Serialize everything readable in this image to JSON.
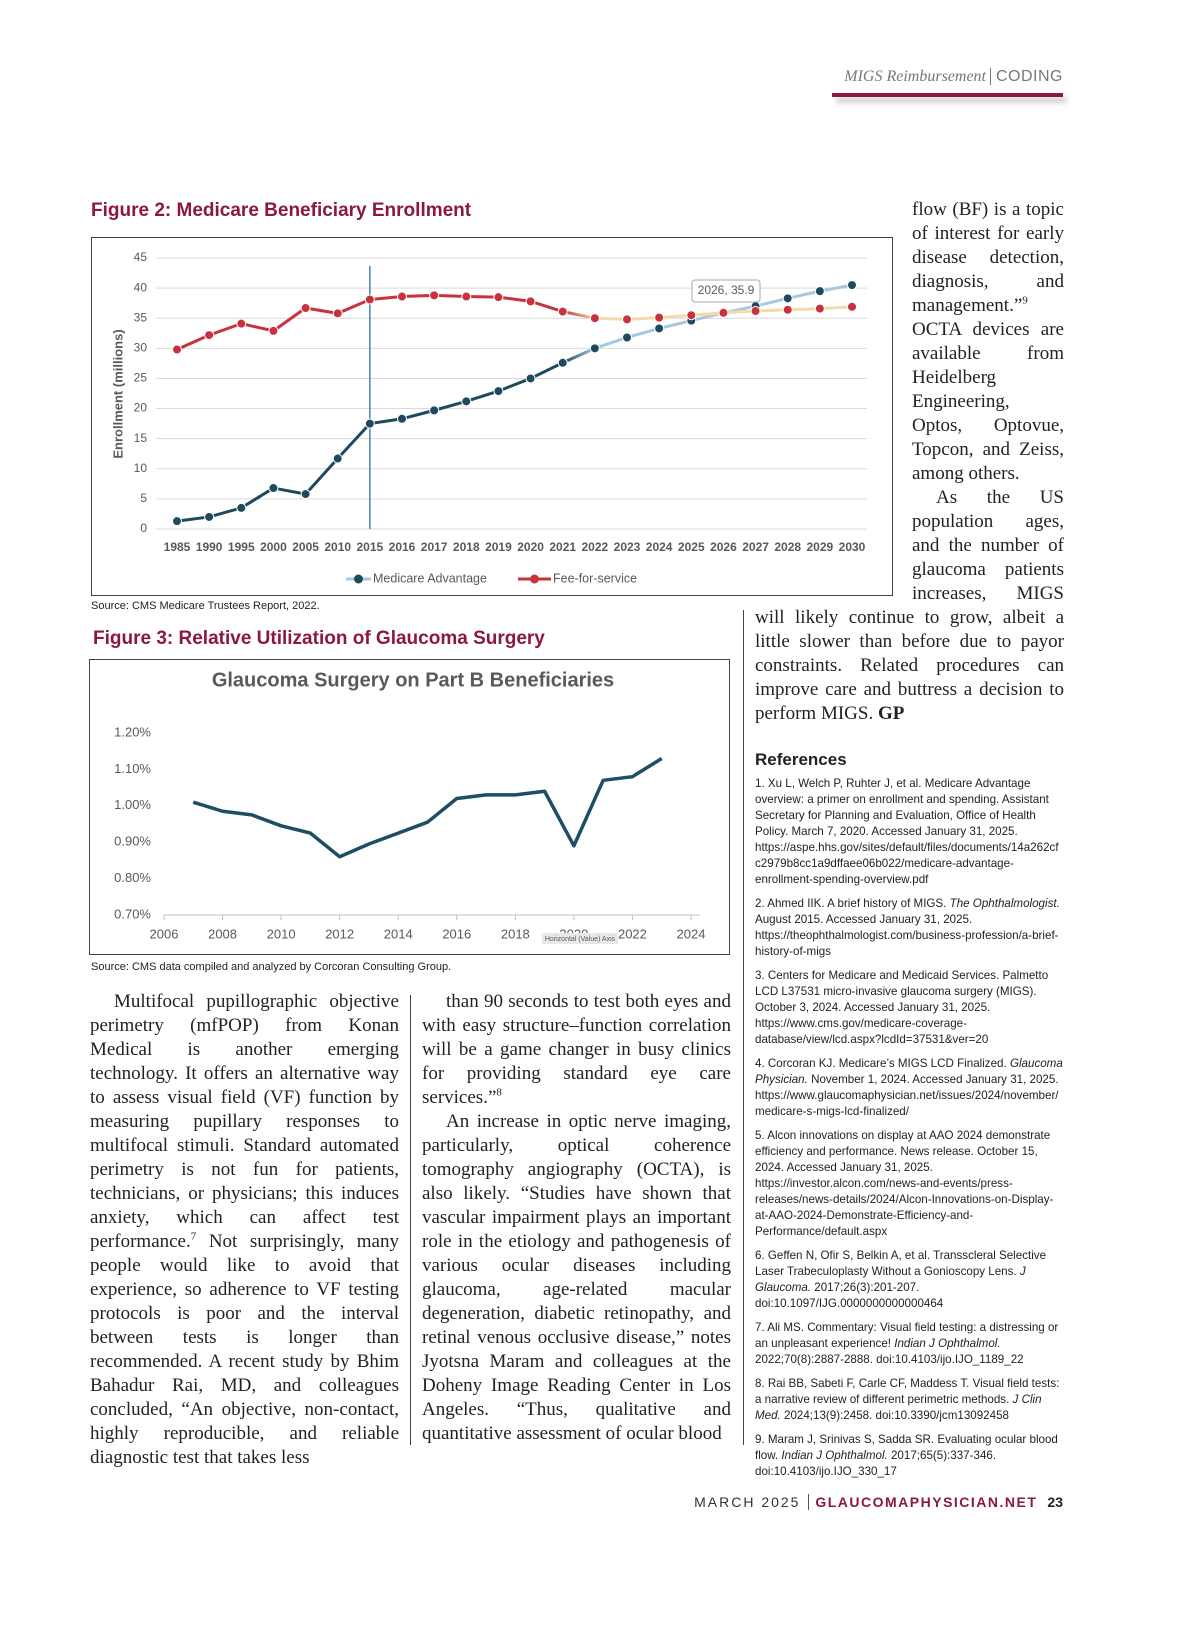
{
  "header": {
    "section": "MIGS Reimbursement",
    "category": "CODING"
  },
  "chart_data": [
    {
      "type": "line",
      "caption": "Figure 2: Medicare Beneficiary Enrollment",
      "source": "Source: CMS Medicare Trustees Report, 2022.",
      "ylabel": "Enrollment (millions)",
      "annotation": "2026, 35.9",
      "categories": [
        "1985",
        "1990",
        "1995",
        "2000",
        "2005",
        "2010",
        "2015",
        "2016",
        "2017",
        "2018",
        "2019",
        "2020",
        "2021",
        "2022",
        "2023",
        "2024",
        "2025",
        "2026",
        "2027",
        "2028",
        "2029",
        "2030"
      ],
      "series": [
        {
          "name": "Medicare Advantage",
          "color": "#1f4a5e",
          "values": [
            1.3,
            2,
            3.5,
            6.8,
            5.8,
            11.7,
            17.5,
            18.3,
            19.7,
            21.2,
            22.9,
            25,
            27.6,
            30,
            31.8,
            33.3,
            34.6,
            35.9,
            37,
            38.3,
            39.5,
            40.5
          ]
        },
        {
          "name": "Fee-for-service",
          "color": "#c8323f",
          "values": [
            29.8,
            32.2,
            34.1,
            32.9,
            36.7,
            35.8,
            38.1,
            38.6,
            38.8,
            38.6,
            38.5,
            37.8,
            36.1,
            35,
            34.8,
            35.1,
            35.5,
            35.9,
            36.2,
            36.4,
            36.6,
            36.9
          ]
        }
      ],
      "ylim": [
        0,
        45
      ],
      "yticks": [
        0,
        5,
        10,
        15,
        20,
        25,
        30,
        35,
        40,
        45
      ],
      "grid": true,
      "legend": "bottom"
    },
    {
      "type": "line",
      "caption": "Figure 3: Relative Utilization of Glaucoma Surgery",
      "source": "Source: CMS data compiled and analyzed by Corcoran Consulting Group.",
      "title": "Glaucoma Surgery on Part B Beneficiaries",
      "xlabel": "Horizontal (Value) Axis",
      "x": [
        2007,
        2008,
        2009,
        2010,
        2011,
        2012,
        2013,
        2014,
        2015,
        2016,
        2017,
        2018,
        2019,
        2020,
        2021,
        2022,
        2023
      ],
      "values": [
        1.01,
        0.985,
        0.975,
        0.945,
        0.925,
        0.86,
        0.895,
        0.925,
        0.955,
        1.02,
        1.03,
        1.03,
        1.04,
        0.89,
        1.07,
        1.08,
        1.13
      ],
      "color": "#1d4e63",
      "xlim": [
        2006,
        2024
      ],
      "xticks": [
        2006,
        2008,
        2010,
        2012,
        2014,
        2016,
        2018,
        2020,
        2022,
        2024
      ],
      "ylim": [
        0.7,
        1.2
      ],
      "yticks": [
        {
          "value": 0.7,
          "label": "0.70%"
        },
        {
          "value": 0.8,
          "label": "0.80%"
        },
        {
          "value": 0.9,
          "label": "0.90%"
        },
        {
          "value": 1.0,
          "label": "1.00%"
        },
        {
          "value": 1.1,
          "label": "1.10%"
        },
        {
          "value": 1.2,
          "label": "1.20%"
        }
      ],
      "grid": false
    }
  ],
  "body": {
    "col1": [
      [
        {
          "text": "Multifocal pupillographic objective perimetry (mfPOP) from Konan Medical is another emerging technology. It offers an alternative way to assess visual field (VF) function by measuring pupillary responses to multifocal stimuli. Standard automated perimetry is not fun for patients, technicians, or physicians; this induces anxiety, which can affect test performance."
        },
        {
          "sup": "7"
        },
        {
          "text": " Not surprisingly, many people would like to avoid that experience, so adherence to VF testing protocols is poor and the interval between tests is longer than recommended. A recent study by Bhim Bahadur Rai, MD, and colleagues concluded, “An objective, non-contact, highly reproducible, and reliable diagnostic test that takes less"
        }
      ]
    ],
    "col2": [
      [
        {
          "text": "than 90 seconds to test both eyes and with easy structure–function correlation will be a game changer in busy clinics for providing standard eye care services.”"
        },
        {
          "sup": "8"
        }
      ],
      [
        {
          "text": "An increase in optic nerve imaging, particularly, optical coherence tomography angiography (OCTA), is also likely. “Studies have shown that vascular impairment plays an important role in the etiology and pathogenesis of various ocular diseases including glaucoma, age-related macular degeneration, diabetic retinopathy, and retinal venous occlusive disease,” notes Jyotsna Maram and colleagues at the Doheny Image Reading Center in Los Angeles. “Thus, qualitative and quantitative assessment of ocular blood"
        }
      ]
    ],
    "col3": [
      [
        {
          "text": "flow (BF) is a topic of interest for early disease detection, diagnosis, and management.”"
        },
        {
          "sup": "9"
        },
        {
          "text": " OCTA devices are available from Heidelberg Engineering, Optos, Optovue, Topcon, and Zeiss, among others."
        }
      ],
      [
        {
          "text": "As the US population ages, and the number of glaucoma patients increases, MIGS will likely continue to grow, albeit a little slower than before due to payor constraints. Related procedures can improve care and buttress a decision to perform MIGS. "
        },
        {
          "bold": "GP"
        }
      ]
    ]
  },
  "references": {
    "heading": "References",
    "items": [
      [
        {
          "text": "1. Xu L, Welch P, Ruhter J, et al. Medicare Advantage overview: a primer on enrollment and spending. Assistant Secretary for Planning and Evaluation, Office of Health Policy. March 7, 2020. Accessed January 31, 2025. https://aspe.hhs.gov/sites/default/files/documents/14a262cfc2979b8cc1a9dffaee06b022/medicare-advantage-enrollment-spending-overview.pdf"
        }
      ],
      [
        {
          "text": "2. Ahmed IIK. A brief history of MIGS. "
        },
        {
          "italic": "The Ophthalmologist."
        },
        {
          "text": " August 2015. Accessed January 31, 2025. https://theophthalmologist.com/business-profession/a-brief-history-of-migs"
        }
      ],
      [
        {
          "text": "3. Centers for Medicare and Medicaid Services. Palmetto LCD L37531 micro-invasive glaucoma surgery (MIGS). October 3, 2024. Accessed January 31, 2025. https://www.cms.gov/medicare-coverage-database/view/lcd.aspx?lcdId=37531&ver=20"
        }
      ],
      [
        {
          "text": "4. Corcoran KJ. Medicare’s MIGS LCD Finalized. "
        },
        {
          "italic": "Glaucoma Physician."
        },
        {
          "text": " November 1, 2024. Accessed January 31, 2025. https://www.glaucomaphysician.net/issues/2024/november/medicare-s-migs-lcd-finalized/"
        }
      ],
      [
        {
          "text": "5. Alcon innovations on display at AAO 2024 demonstrate efficiency and performance. News release. October 15, 2024. Accessed January 31, 2025. https://investor.alcon.com/news-and-events/press-releases/news-details/2024/Alcon-Innovations-on-Display-at-AAO-2024-Demonstrate-Efficiency-and-Performance/default.aspx"
        }
      ],
      [
        {
          "text": "6. Geffen N, Ofir S, Belkin A, et al. Transscleral Selective Laser Trabeculoplasty Without a Gonioscopy Lens. "
        },
        {
          "italic": "J Glaucoma."
        },
        {
          "text": " 2017;26(3):201-207. doi:10.1097/IJG.0000000000000464"
        }
      ],
      [
        {
          "text": "7. Ali MS. Commentary: Visual field testing: a distressing or an unpleasant experience! "
        },
        {
          "italic": "Indian J Ophthalmol."
        },
        {
          "text": " 2022;70(8):2887-2888. doi:10.4103/ijo.IJO_1189_22"
        }
      ],
      [
        {
          "text": "8. Rai BB, Sabeti F, Carle CF, Maddess T. Visual field tests: a narrative review of different perimetric methods. "
        },
        {
          "italic": "J Clin Med."
        },
        {
          "text": " 2024;13(9):2458. doi:10.3390/jcm13092458"
        }
      ],
      [
        {
          "text": "9. Maram J, Srinivas S, Sadda SR. Evaluating ocular blood flow. "
        },
        {
          "italic": "Indian J Ophthalmol."
        },
        {
          "text": " 2017;65(5):337-346. doi:10.4103/ijo.IJO_330_17"
        }
      ]
    ]
  },
  "footer": {
    "date": "MARCH 2025",
    "site": "GLAUCOMAPHYSICIAN.NET",
    "page": "23"
  }
}
